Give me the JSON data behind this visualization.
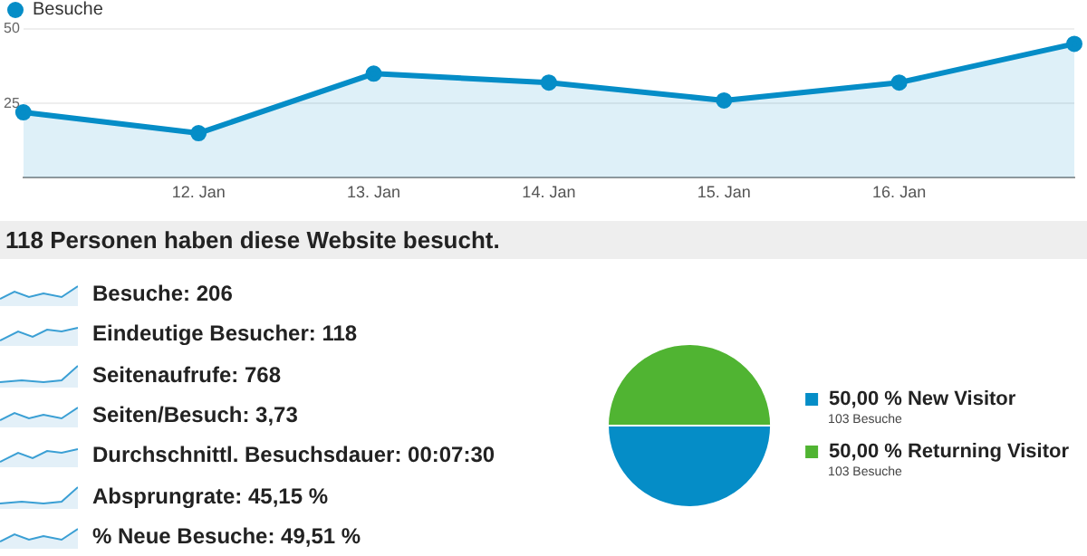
{
  "chart_data": [
    {
      "type": "area",
      "categories": [
        null,
        "12. Jan",
        "13. Jan",
        "14. Jan",
        "15. Jan",
        "16. Jan",
        null
      ],
      "series": [
        {
          "name": "Besuche",
          "color": "#058dc7",
          "values": [
            22,
            15,
            35,
            32,
            26,
            32,
            45
          ]
        }
      ],
      "ylim": [
        0,
        50
      ],
      "yticks": [
        25,
        50
      ],
      "grid": "y",
      "legend": "top left",
      "marker": "circle"
    },
    {
      "type": "other",
      "title": "118 Personen haben diese Website besucht.",
      "annotations": [
        "Besuche: 206",
        "Eindeutige Besucher: 118",
        "Seitenaufrufe: 768",
        "Seiten/Besuch: 3,73",
        "Durchschnittl. Besuchsdauer: 00:07:30",
        "Absprungrate: 45,15 %",
        "% Neue Besuche: 49,51 %"
      ]
    },
    {
      "type": "pie",
      "categories": [
        "New Visitor",
        "Returning Visitor"
      ],
      "values": [
        50,
        50
      ],
      "colors": [
        "#058dc7",
        "#50b432"
      ],
      "value_labels": [
        "50,00 %",
        "50,00 %"
      ],
      "annotations": [
        "103 Besuche",
        "103 Besuche"
      ],
      "legend": "right"
    }
  ]
}
